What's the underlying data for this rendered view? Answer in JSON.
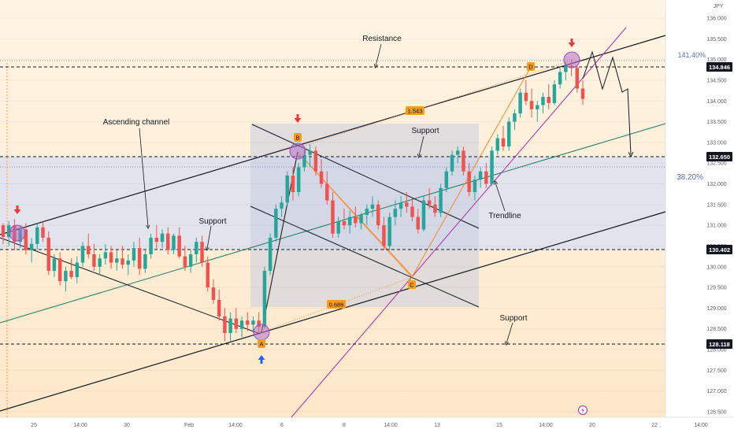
{
  "chart_data": {
    "type": "candlestick",
    "currency_label": "JPY",
    "y_ticks": [
      "136.000",
      "135.500",
      "135.000",
      "134.500",
      "134.000",
      "133.500",
      "133.000",
      "132.500",
      "132.000",
      "131.500",
      "131.000",
      "130.500",
      "130.000",
      "129.500",
      "129.000",
      "128.500",
      "128.000",
      "127.500",
      "127.000",
      "126.500"
    ],
    "x_ticks": [
      "25",
      "14:00",
      "30",
      "Feb",
      "14:00",
      "6",
      "8",
      "14:00",
      "13",
      "15",
      "14:00",
      "20",
      "22",
      "14:00"
    ],
    "price_labels": [
      "134.846",
      "132.650",
      "130.402",
      "128.118"
    ],
    "level_prices": [
      134.846,
      132.65,
      130.402,
      128.118
    ],
    "fib_labels": {
      "upper": "141.40%",
      "lower": "38.20%"
    },
    "ratio_labels": [
      "1.543",
      "0.686"
    ],
    "point_labels": [
      "A",
      "B",
      "C",
      "D"
    ],
    "annotations": [
      "Resistance",
      "Ascending channel",
      "Support",
      "Support",
      "Support",
      "Trendline"
    ],
    "ohlc": [
      [
        131.0,
        131.05,
        130.55,
        130.72
      ],
      [
        130.72,
        131.1,
        130.5,
        131.0
      ],
      [
        131.0,
        131.15,
        130.4,
        130.6
      ],
      [
        130.6,
        131.0,
        130.45,
        130.9
      ],
      [
        130.9,
        131.05,
        130.3,
        130.4
      ],
      [
        130.4,
        130.7,
        130.1,
        130.55
      ],
      [
        130.55,
        131.05,
        130.4,
        130.95
      ],
      [
        130.95,
        131.1,
        130.6,
        130.7
      ],
      [
        130.7,
        130.85,
        129.8,
        129.9
      ],
      [
        129.9,
        130.3,
        129.75,
        130.2
      ],
      [
        130.2,
        130.35,
        129.55,
        129.65
      ],
      [
        129.65,
        130.0,
        129.4,
        129.9
      ],
      [
        129.9,
        130.2,
        129.7,
        129.75
      ],
      [
        129.75,
        130.25,
        129.6,
        130.1
      ],
      [
        130.1,
        130.6,
        130.0,
        130.5
      ],
      [
        130.5,
        130.8,
        130.2,
        130.3
      ],
      [
        130.3,
        130.55,
        129.9,
        130.0
      ],
      [
        130.0,
        130.3,
        129.8,
        130.2
      ],
      [
        130.2,
        130.55,
        130.05,
        130.35
      ],
      [
        130.35,
        130.5,
        129.95,
        130.1
      ],
      [
        130.1,
        130.4,
        129.9,
        130.2
      ],
      [
        130.2,
        130.5,
        129.95,
        130.05
      ],
      [
        130.05,
        130.3,
        129.8,
        130.15
      ],
      [
        130.15,
        130.6,
        130.0,
        130.45
      ],
      [
        130.45,
        130.7,
        129.8,
        129.95
      ],
      [
        129.95,
        130.4,
        129.85,
        130.3
      ],
      [
        130.3,
        130.8,
        130.2,
        130.7
      ],
      [
        130.7,
        131.0,
        130.4,
        130.6
      ],
      [
        130.6,
        130.9,
        130.45,
        130.8
      ],
      [
        130.8,
        130.95,
        130.3,
        130.4
      ],
      [
        130.4,
        130.8,
        130.3,
        130.75
      ],
      [
        130.75,
        130.95,
        130.2,
        130.25
      ],
      [
        130.25,
        130.5,
        129.9,
        130.0
      ],
      [
        130.0,
        130.4,
        129.85,
        130.3
      ],
      [
        130.3,
        130.7,
        130.1,
        130.6
      ],
      [
        130.6,
        130.75,
        130.0,
        130.1
      ],
      [
        130.1,
        130.25,
        129.4,
        129.5
      ],
      [
        129.5,
        129.7,
        129.1,
        129.2
      ],
      [
        129.2,
        129.45,
        128.7,
        128.8
      ],
      [
        128.8,
        129.0,
        128.2,
        128.4
      ],
      [
        128.4,
        128.9,
        128.2,
        128.75
      ],
      [
        128.75,
        129.0,
        128.4,
        128.5
      ],
      [
        128.5,
        128.8,
        128.3,
        128.7
      ],
      [
        128.7,
        128.9,
        128.45,
        128.6
      ],
      [
        128.6,
        128.8,
        128.4,
        128.7
      ],
      [
        128.7,
        128.9,
        128.4,
        128.55
      ],
      [
        128.55,
        130.0,
        128.5,
        129.9
      ],
      [
        129.9,
        130.8,
        129.8,
        130.7
      ],
      [
        130.7,
        131.5,
        130.6,
        131.4
      ],
      [
        131.4,
        131.7,
        131.2,
        131.55
      ],
      [
        131.55,
        132.3,
        131.45,
        132.2
      ],
      [
        132.2,
        132.4,
        131.6,
        131.8
      ],
      [
        131.8,
        132.5,
        131.7,
        132.4
      ],
      [
        132.4,
        132.9,
        132.3,
        132.7
      ],
      [
        132.7,
        132.95,
        132.4,
        132.8
      ],
      [
        132.8,
        132.9,
        132.2,
        132.3
      ],
      [
        132.3,
        132.6,
        131.9,
        132.0
      ],
      [
        132.0,
        132.3,
        131.5,
        131.6
      ],
      [
        131.6,
        131.8,
        130.7,
        130.8
      ],
      [
        130.8,
        131.2,
        130.7,
        131.1
      ],
      [
        131.1,
        131.4,
        130.9,
        131.0
      ],
      [
        131.0,
        131.35,
        130.8,
        131.2
      ],
      [
        131.2,
        131.45,
        130.95,
        131.05
      ],
      [
        131.05,
        131.3,
        130.9,
        131.25
      ],
      [
        131.25,
        131.5,
        131.0,
        131.4
      ],
      [
        131.4,
        131.7,
        131.2,
        131.5
      ],
      [
        131.5,
        131.6,
        130.9,
        131.0
      ],
      [
        131.0,
        131.2,
        130.4,
        130.5
      ],
      [
        130.5,
        131.3,
        130.4,
        131.2
      ],
      [
        131.2,
        131.6,
        131.0,
        131.4
      ],
      [
        131.4,
        131.7,
        131.2,
        131.55
      ],
      [
        131.55,
        131.8,
        131.3,
        131.45
      ],
      [
        131.45,
        131.65,
        131.1,
        131.2
      ],
      [
        131.2,
        131.4,
        130.8,
        130.9
      ],
      [
        130.9,
        131.7,
        130.85,
        131.6
      ],
      [
        131.6,
        131.9,
        131.4,
        131.5
      ],
      [
        131.5,
        131.7,
        131.2,
        131.3
      ],
      [
        131.3,
        132.0,
        131.2,
        131.9
      ],
      [
        131.9,
        132.4,
        131.8,
        132.3
      ],
      [
        132.3,
        132.8,
        132.2,
        132.7
      ],
      [
        132.7,
        132.9,
        132.5,
        132.8
      ],
      [
        132.8,
        132.9,
        132.2,
        132.3
      ],
      [
        132.3,
        132.5,
        131.7,
        131.8
      ],
      [
        131.8,
        132.2,
        131.6,
        132.1
      ],
      [
        132.1,
        132.4,
        131.9,
        132.3
      ],
      [
        132.3,
        132.5,
        131.9,
        132.0
      ],
      [
        132.0,
        132.9,
        131.95,
        132.8
      ],
      [
        132.8,
        133.2,
        132.7,
        133.1
      ],
      [
        133.1,
        133.4,
        132.8,
        132.9
      ],
      [
        132.9,
        133.6,
        132.8,
        133.5
      ],
      [
        133.5,
        133.8,
        133.3,
        133.7
      ],
      [
        133.7,
        134.3,
        133.6,
        134.2
      ],
      [
        134.2,
        134.5,
        133.9,
        134.0
      ],
      [
        134.0,
        134.3,
        133.6,
        133.8
      ],
      [
        133.8,
        134.0,
        133.5,
        133.9
      ],
      [
        133.9,
        134.2,
        133.7,
        134.1
      ],
      [
        134.1,
        134.4,
        133.8,
        133.95
      ],
      [
        133.95,
        134.5,
        133.9,
        134.4
      ],
      [
        134.4,
        134.8,
        134.3,
        134.7
      ],
      [
        134.7,
        134.95,
        134.5,
        134.85
      ],
      [
        134.85,
        135.0,
        134.6,
        134.8
      ],
      [
        134.8,
        134.85,
        134.2,
        134.3
      ],
      [
        134.3,
        134.5,
        133.9,
        134.05
      ]
    ]
  }
}
